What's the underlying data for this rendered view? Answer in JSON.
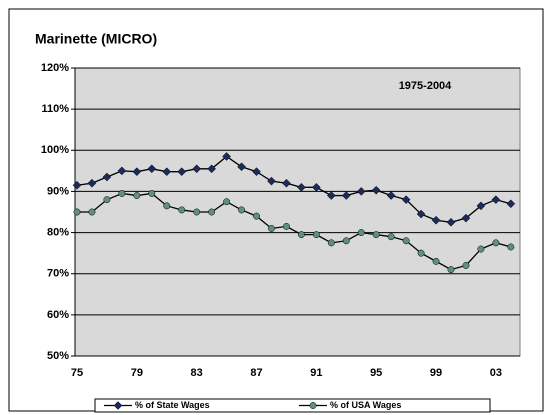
{
  "chart_data": {
    "type": "line",
    "title": "Marinette (MICRO)",
    "annotation": "1975-2004",
    "categories": [
      "75",
      null,
      null,
      null,
      "79",
      null,
      null,
      null,
      "83",
      null,
      null,
      null,
      "87",
      null,
      null,
      null,
      "91",
      null,
      null,
      null,
      "95",
      null,
      null,
      null,
      "99",
      null,
      null,
      null,
      "03",
      null
    ],
    "series": [
      {
        "name": "% of State Wages",
        "color": "#1f2a5c",
        "marker": "diamond",
        "values": [
          91.5,
          92,
          93.5,
          95,
          94.8,
          95.5,
          94.8,
          94.8,
          95.5,
          95.5,
          98.5,
          96,
          94.8,
          92.5,
          92,
          91,
          91,
          89,
          89,
          90,
          90.3,
          89,
          88,
          84.5,
          83,
          82.5,
          83.5,
          86.5,
          88,
          87
        ]
      },
      {
        "name": "% of USA Wages",
        "color": "#5f8f7f",
        "marker": "circle",
        "values": [
          85,
          85,
          88,
          89.5,
          89,
          89.5,
          86.5,
          85.5,
          85,
          85,
          87.5,
          85.5,
          84,
          81,
          81.5,
          79.5,
          79.5,
          77.5,
          78,
          80,
          79.5,
          79,
          78,
          75,
          73,
          71,
          72,
          76,
          77.5,
          76.5
        ]
      }
    ],
    "ylim": [
      50,
      120
    ],
    "yticks": [
      {
        "value": 50,
        "label": "50%"
      },
      {
        "value": 60,
        "label": "60%"
      },
      {
        "value": 70,
        "label": "70%"
      },
      {
        "value": 80,
        "label": "80%"
      },
      {
        "value": 90,
        "label": "90%"
      },
      {
        "value": 100,
        "label": "100%"
      },
      {
        "value": 110,
        "label": "110%"
      },
      {
        "value": 120,
        "label": "120%"
      }
    ],
    "grid": true,
    "plot_background": "#d9d9d9",
    "legend": "bottom"
  }
}
